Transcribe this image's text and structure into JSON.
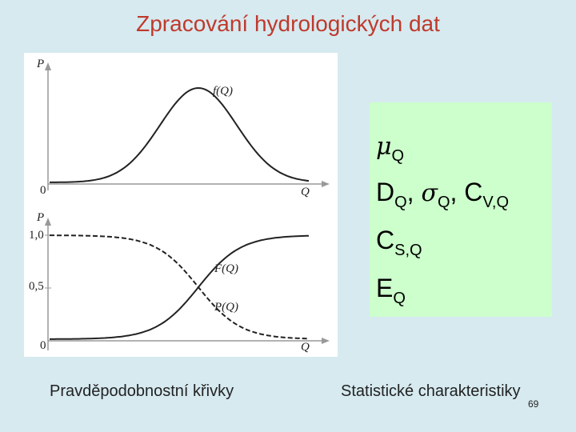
{
  "title": "Zpracování hydrologických dat",
  "figure": {
    "top_plot": {
      "y_axis": "P",
      "x_axis": "Q",
      "origin": "0",
      "curve": "f(Q)"
    },
    "bottom_plot": {
      "y_axis": "P",
      "x_axis": "Q",
      "tick_top": "1,0",
      "tick_mid": "0,5",
      "origin": "0",
      "curve_rising": "F(Q)",
      "curve_falling": "P(Q)"
    }
  },
  "stats": {
    "mu_symbol": "μ",
    "mu_sub": "Q",
    "d_letter": "D",
    "d_sub": "Q",
    "sigma_symbol": "σ",
    "sigma_sub": "Q",
    "cv_letter": "C",
    "cv_sub": "V,Q",
    "sep": ",",
    "cs_letter": "C",
    "cs_sub": "S,Q",
    "e_letter": "E",
    "e_sub": "Q"
  },
  "captions": {
    "left": "Pravděpodobnostní křivky",
    "right": "Statistické charakteristiky"
  },
  "page_number": "69",
  "colors": {
    "background": "#d6eaf0",
    "title": "#c0392b",
    "stats_box": "#ccffcc"
  }
}
